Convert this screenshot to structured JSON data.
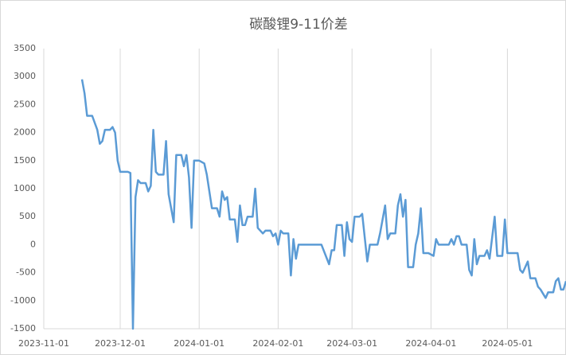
{
  "chart_data": {
    "type": "line",
    "title": "碳酸锂9-11价差",
    "x": [
      "2023-11-16",
      "2023-11-17",
      "2023-11-18",
      "2023-11-20",
      "2023-11-22",
      "2023-11-23",
      "2023-11-24",
      "2023-11-25",
      "2023-11-27",
      "2023-11-28",
      "2023-11-29",
      "2023-11-30",
      "2023-12-01",
      "2023-12-04",
      "2023-12-05",
      "2023-12-06",
      "2023-12-07",
      "2023-12-08",
      "2023-12-09",
      "2023-12-11",
      "2023-12-12",
      "2023-12-13",
      "2023-12-14",
      "2023-12-15",
      "2023-12-16",
      "2023-12-18",
      "2023-12-19",
      "2023-12-20",
      "2023-12-22",
      "2023-12-23",
      "2023-12-25",
      "2023-12-26",
      "2023-12-27",
      "2023-12-28",
      "2023-12-29",
      "2023-12-30",
      "2024-01-01",
      "2024-01-03",
      "2024-01-04",
      "2024-01-06",
      "2024-01-08",
      "2024-01-09",
      "2024-01-10",
      "2024-01-11",
      "2024-01-12",
      "2024-01-13",
      "2024-01-15",
      "2024-01-16",
      "2024-01-17",
      "2024-01-18",
      "2024-01-19",
      "2024-01-20",
      "2024-01-22",
      "2024-01-23",
      "2024-01-24",
      "2024-01-26",
      "2024-01-27",
      "2024-01-29",
      "2024-01-30",
      "2024-01-31",
      "2024-02-01",
      "2024-02-02",
      "2024-02-03",
      "2024-02-05",
      "2024-02-06",
      "2024-02-07",
      "2024-02-08",
      "2024-02-09",
      "2024-02-11",
      "2024-02-18",
      "2024-02-21",
      "2024-02-22",
      "2024-02-23",
      "2024-02-24",
      "2024-02-26",
      "2024-02-27",
      "2024-02-28",
      "2024-02-29",
      "2024-03-01",
      "2024-03-02",
      "2024-03-04",
      "2024-03-05",
      "2024-03-07",
      "2024-03-08",
      "2024-03-10",
      "2024-03-11",
      "2024-03-12",
      "2024-03-14",
      "2024-03-15",
      "2024-03-16",
      "2024-03-18",
      "2024-03-19",
      "2024-03-20",
      "2024-03-21",
      "2024-03-22",
      "2024-03-23",
      "2024-03-25",
      "2024-03-26",
      "2024-03-27",
      "2024-03-28",
      "2024-03-29",
      "2024-03-31",
      "2024-04-02",
      "2024-04-03",
      "2024-04-04",
      "2024-04-07",
      "2024-04-08",
      "2024-04-09",
      "2024-04-10",
      "2024-04-11",
      "2024-04-12",
      "2024-04-13",
      "2024-04-15",
      "2024-04-16",
      "2024-04-17",
      "2024-04-18",
      "2024-04-19",
      "2024-04-20",
      "2024-04-22",
      "2024-04-23",
      "2024-04-24",
      "2024-04-26",
      "2024-04-27",
      "2024-04-29",
      "2024-04-30",
      "2024-05-01",
      "2024-05-05",
      "2024-05-06",
      "2024-05-07",
      "2024-05-08",
      "2024-05-09",
      "2024-05-10",
      "2024-05-12",
      "2024-05-13",
      "2024-05-14",
      "2024-05-16",
      "2024-05-17",
      "2024-05-19",
      "2024-05-20",
      "2024-05-21",
      "2024-05-22",
      "2024-05-23",
      "2024-05-24"
    ],
    "series": [
      {
        "name": "碳酸锂9-11价差",
        "color": "#5b9bd5",
        "values": [
          2950,
          2700,
          2300,
          2300,
          2050,
          1800,
          1850,
          2050,
          2050,
          2100,
          2000,
          1500,
          1300,
          1300,
          1280,
          -1500,
          850,
          1150,
          1100,
          1100,
          950,
          1050,
          2050,
          1300,
          1250,
          1250,
          1850,
          900,
          400,
          1600,
          1600,
          1400,
          1600,
          1200,
          300,
          1500,
          1500,
          1450,
          1250,
          650,
          650,
          500,
          950,
          800,
          850,
          450,
          450,
          50,
          700,
          350,
          350,
          500,
          500,
          1000,
          300,
          200,
          250,
          250,
          150,
          200,
          0,
          250,
          200,
          200,
          -550,
          100,
          -250,
          0,
          0,
          0,
          -350,
          -100,
          -100,
          350,
          350,
          -200,
          400,
          100,
          50,
          500,
          500,
          550,
          -300,
          0,
          0,
          0,
          200,
          700,
          100,
          200,
          200,
          700,
          900,
          500,
          800,
          -400,
          -400,
          0,
          200,
          650,
          -150,
          -150,
          -200,
          100,
          0,
          0,
          0,
          100,
          0,
          150,
          150,
          0,
          0,
          -450,
          -550,
          100,
          -350,
          -200,
          -200,
          -100,
          -250,
          500,
          -200,
          -200,
          450,
          -150,
          -150,
          -450,
          -500,
          -400,
          -300,
          -600,
          -600,
          -750,
          -800,
          -950,
          -850,
          -850,
          -650,
          -600,
          -800,
          -800,
          -650
        ]
      }
    ],
    "xlim": [
      "2023-11-01",
      "2024-05-24"
    ],
    "xticks": [
      "2023-11-01",
      "2023-12-01",
      "2024-01-01",
      "2024-02-01",
      "2024-03-01",
      "2024-04-01",
      "2024-05-01"
    ],
    "ylim": [
      -1500,
      3500
    ],
    "yticks": [
      -1500,
      -1000,
      -500,
      0,
      500,
      1000,
      1500,
      2000,
      2500,
      3000,
      3500
    ],
    "grid": "x"
  }
}
